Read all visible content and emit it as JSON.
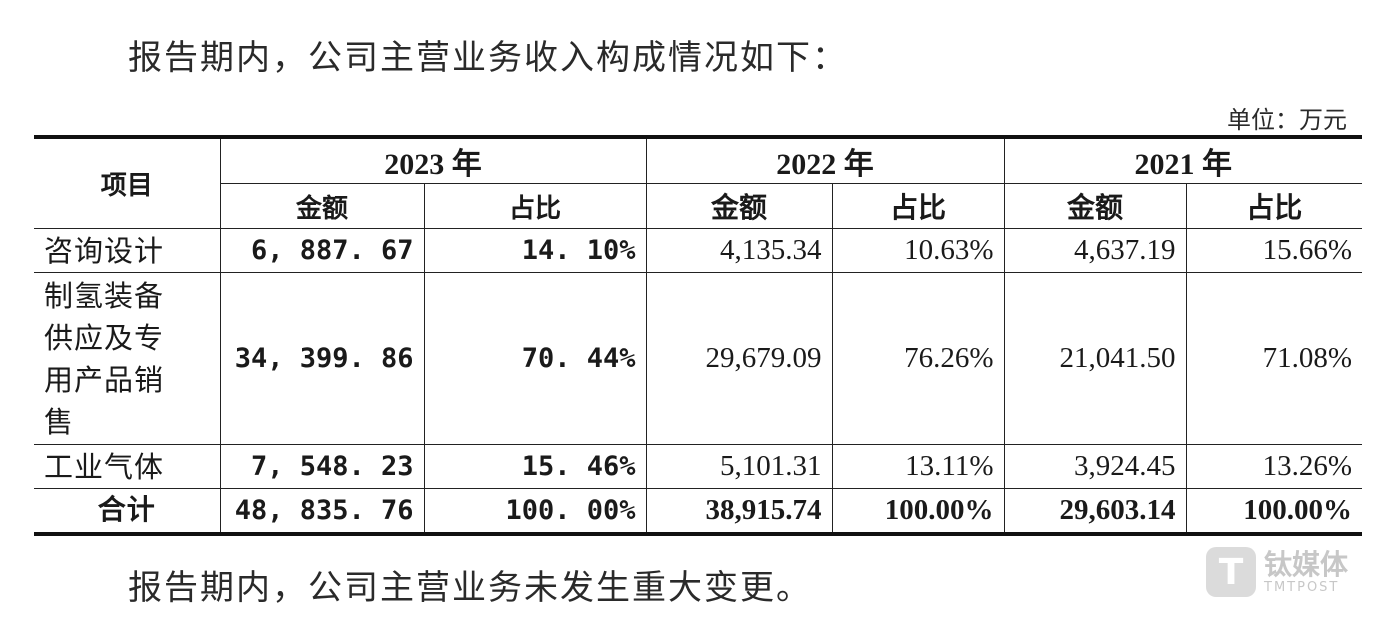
{
  "intro_text": "报告期内，公司主营业务收入构成情况如下：",
  "unit_text": "单位：万元",
  "table": {
    "header": {
      "item": "项目",
      "years": [
        "2023 年",
        "2022 年",
        "2021 年"
      ],
      "sub_amount": "金额",
      "sub_ratio": "占比"
    },
    "rows": [
      {
        "label": "咨询设计",
        "values": [
          "6, 887. 67",
          "14. 10%",
          "4,135.34",
          "10.63%",
          "4,637.19",
          "15.66%"
        ]
      },
      {
        "label_lines": [
          "制氢装备",
          "供应及专",
          "用产品销",
          "售"
        ],
        "values": [
          "34, 399. 86",
          "70. 44%",
          "29,679.09",
          "76.26%",
          "21,041.50",
          "71.08%"
        ]
      },
      {
        "label": "工业气体",
        "values": [
          "7, 548. 23",
          "15. 46%",
          "5,101.31",
          "13.11%",
          "3,924.45",
          "13.26%"
        ]
      }
    ],
    "total": {
      "label": "合计",
      "values": [
        "48, 835. 76",
        "100. 00%",
        "38,915.74",
        "100.00%",
        "29,603.14",
        "100.00%"
      ]
    }
  },
  "outro_text": "报告期内，公司主营业务未发生重大变更。",
  "watermark": {
    "logo_glyph": "T",
    "name": "钛媒体",
    "english": "TMTPOST"
  }
}
